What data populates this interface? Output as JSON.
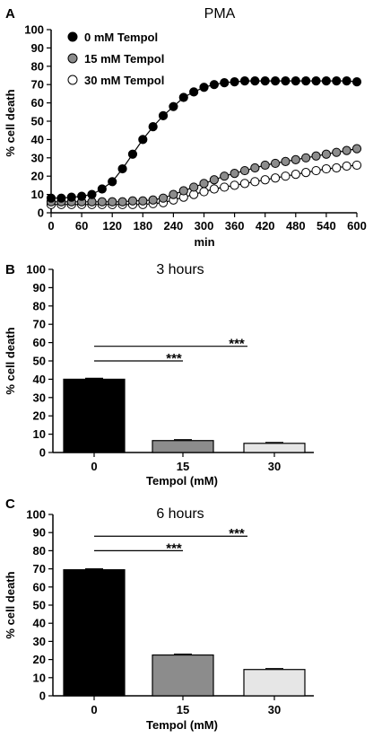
{
  "chart_data": [
    {
      "panel": "A",
      "type": "scatter",
      "title": "PMA",
      "xlabel": "min",
      "ylabel": "% cell death",
      "xlim": [
        0,
        600
      ],
      "ylim": [
        0,
        100
      ],
      "xticks": [
        0,
        60,
        120,
        180,
        240,
        300,
        360,
        420,
        480,
        540,
        600
      ],
      "yticks": [
        0,
        10,
        20,
        30,
        40,
        50,
        60,
        70,
        80,
        90,
        100
      ],
      "legend_position": "top-left",
      "x": [
        0,
        20,
        40,
        60,
        80,
        100,
        120,
        140,
        160,
        180,
        200,
        220,
        240,
        260,
        280,
        300,
        320,
        340,
        360,
        380,
        400,
        420,
        440,
        460,
        480,
        500,
        520,
        540,
        560,
        580,
        600
      ],
      "series": [
        {
          "name": "0 mM Tempol",
          "color": "#000000",
          "y": [
            8,
            8,
            8.5,
            9,
            10,
            13,
            17,
            24,
            32,
            40,
            47,
            53,
            58,
            63,
            66,
            68.5,
            70,
            71,
            71.5,
            72,
            72,
            72,
            72,
            72,
            72,
            72,
            72,
            72,
            72,
            72,
            71.5
          ]
        },
        {
          "name": "15 mM Tempol",
          "color": "#8c8c8c",
          "y": [
            6,
            6,
            6,
            6,
            6,
            6,
            6,
            6,
            6.5,
            6.5,
            7,
            8,
            10,
            12,
            14,
            16,
            18,
            20,
            21.5,
            23,
            24.5,
            26,
            27,
            28,
            29,
            30,
            31,
            32,
            33,
            34,
            35
          ]
        },
        {
          "name": "30 mM Tempol",
          "color": "#ffffff",
          "y": [
            4.5,
            4.5,
            4.5,
            4.5,
            4.5,
            4.5,
            4.5,
            4.5,
            4.5,
            4.5,
            5,
            5.5,
            7,
            8.5,
            10,
            11.5,
            13,
            14,
            15,
            16,
            17,
            18,
            19,
            20,
            21,
            22,
            23,
            24,
            24.5,
            25.5,
            26
          ]
        }
      ]
    },
    {
      "panel": "B",
      "type": "bar",
      "title": "3 hours",
      "xlabel": "Tempol (mM)",
      "ylabel": "% cell death",
      "ylim": [
        0,
        100
      ],
      "yticks": [
        0,
        10,
        20,
        30,
        40,
        50,
        60,
        70,
        80,
        90,
        100
      ],
      "categories": [
        "0",
        "15",
        "30"
      ],
      "values": [
        40,
        6.5,
        5
      ],
      "colors": [
        "#000000",
        "#8c8c8c",
        "#e6e6e6"
      ],
      "significance": [
        {
          "from": 0,
          "to": 1,
          "y": 50,
          "label": "***"
        },
        {
          "from": 0,
          "to": 2,
          "y": 58,
          "label": "***"
        }
      ]
    },
    {
      "panel": "C",
      "type": "bar",
      "title": "6 hours",
      "xlabel": "Tempol (mM)",
      "ylabel": "% cell death",
      "ylim": [
        0,
        100
      ],
      "yticks": [
        0,
        10,
        20,
        30,
        40,
        50,
        60,
        70,
        80,
        90,
        100
      ],
      "categories": [
        "0",
        "15",
        "30"
      ],
      "values": [
        69.5,
        22.5,
        14.5
      ],
      "colors": [
        "#000000",
        "#8c8c8c",
        "#e6e6e6"
      ],
      "significance": [
        {
          "from": 0,
          "to": 1,
          "y": 80,
          "label": "***"
        },
        {
          "from": 0,
          "to": 2,
          "y": 88,
          "label": "***"
        }
      ]
    }
  ]
}
